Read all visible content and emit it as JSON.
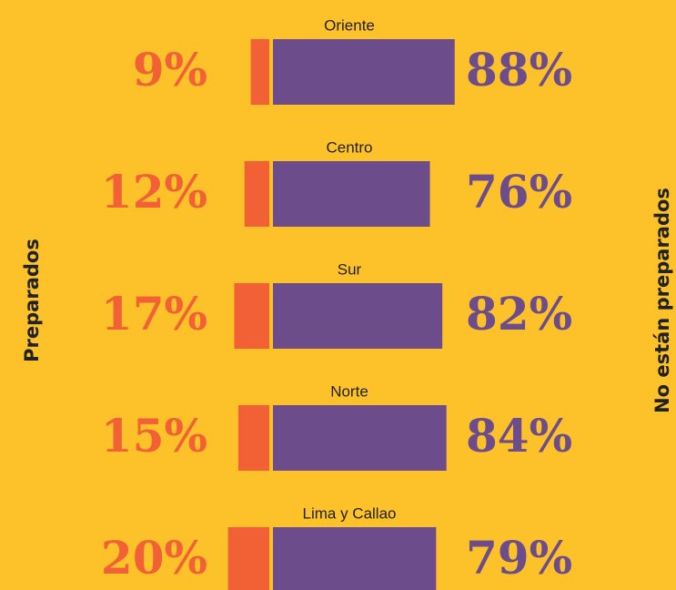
{
  "chart_data": {
    "type": "diverging-bar",
    "categories": [
      "Oriente",
      "Centro",
      "Sur",
      "Norte",
      "Lima y Callao"
    ],
    "series": [
      {
        "name": "Preparados",
        "color": "#f26135",
        "values": [
          9,
          12,
          17,
          15,
          20
        ],
        "value_labels": [
          "9%",
          "12%",
          "17%",
          "15%",
          "20%"
        ]
      },
      {
        "name": "No están preparados",
        "color": "#6d4c8c",
        "values": [
          88,
          76,
          82,
          84,
          79
        ],
        "value_labels": [
          "88%",
          "76%",
          "82%",
          "84%",
          "79%"
        ]
      }
    ]
  }
}
